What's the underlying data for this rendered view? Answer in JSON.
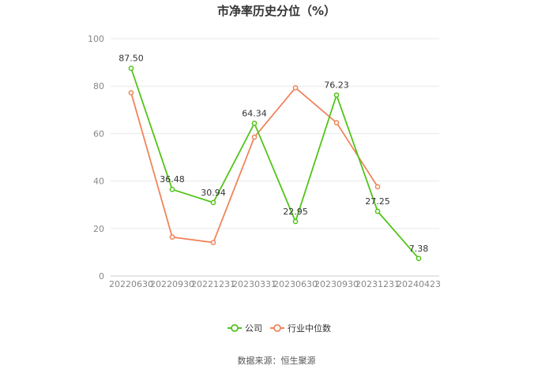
{
  "chart_data": {
    "type": "line",
    "title": "市净率历史分位（%）",
    "categories": [
      "20220630",
      "20220930",
      "20221231",
      "20230331",
      "20230630",
      "20230930",
      "20231231",
      "20240423"
    ],
    "ylim": [
      0,
      100
    ],
    "yticks": [
      0,
      20,
      40,
      60,
      80,
      100
    ],
    "grid": true,
    "legend_position": "bottom",
    "series": [
      {
        "name": "公司",
        "color": "#52c41a",
        "values": [
          87.5,
          36.48,
          30.94,
          64.34,
          22.95,
          76.23,
          27.25,
          7.38
        ],
        "labels": [
          "87.50",
          "36.48",
          "30.94",
          "64.34",
          "22.95",
          "76.23",
          "27.25",
          "7.38"
        ]
      },
      {
        "name": "行业中位数",
        "color": "#f0845a",
        "values": [
          77.2,
          16.4,
          14.1,
          58.5,
          79.3,
          64.6,
          37.6,
          null
        ]
      }
    ]
  },
  "source_text": "数据来源：恒生聚源"
}
